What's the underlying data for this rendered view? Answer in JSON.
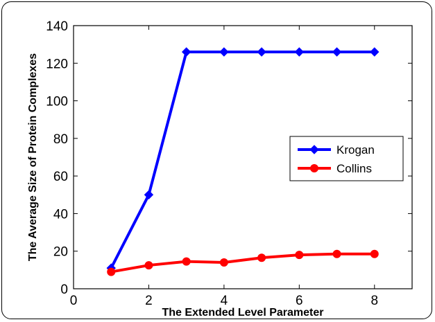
{
  "chart_data": {
    "type": "line",
    "xlabel": "The Extended Level Parameter",
    "ylabel": "The Average Size of Protein Complexes",
    "xlim": [
      0,
      9
    ],
    "ylim": [
      0,
      140
    ],
    "xticks": [
      0,
      2,
      4,
      6,
      8
    ],
    "yticks": [
      0,
      20,
      40,
      60,
      80,
      100,
      120,
      140
    ],
    "grid": false,
    "legend_position": "center-right",
    "series": [
      {
        "name": "Krogan",
        "color": "#0000ff",
        "marker": "diamond",
        "x": [
          1,
          2,
          3,
          4,
          5,
          6,
          7,
          8
        ],
        "y": [
          11,
          50,
          126,
          126,
          126,
          126,
          126,
          126
        ]
      },
      {
        "name": "Collins",
        "color": "#ff0000",
        "marker": "circle",
        "x": [
          1,
          2,
          3,
          4,
          5,
          6,
          7,
          8
        ],
        "y": [
          9,
          12.5,
          14.5,
          14,
          16.5,
          18,
          18.5,
          18.5
        ]
      }
    ]
  }
}
